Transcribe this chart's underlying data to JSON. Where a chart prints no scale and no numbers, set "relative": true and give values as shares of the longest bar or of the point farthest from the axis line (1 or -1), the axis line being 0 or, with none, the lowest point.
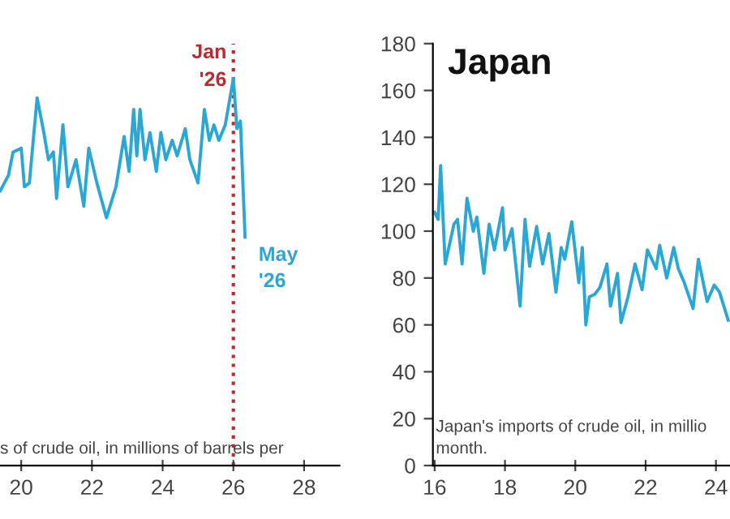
{
  "chart_data": [
    {
      "type": "line",
      "relative": true,
      "grid": false,
      "xlim": [
        19.4,
        29
      ],
      "xticks": [
        20,
        22,
        24,
        26,
        28
      ],
      "series": [
        {
          "color": "#2aa7d4",
          "x": [
            19.41,
            19.64,
            19.77,
            20.0,
            20.09,
            20.23,
            20.45,
            20.64,
            20.77,
            20.91,
            21.0,
            21.18,
            21.32,
            21.55,
            21.77,
            21.91,
            22.14,
            22.41,
            22.68,
            22.91,
            23.05,
            23.18,
            23.27,
            23.36,
            23.5,
            23.64,
            23.82,
            23.95,
            24.09,
            24.27,
            24.41,
            24.64,
            24.77,
            25.0,
            25.18,
            25.32,
            25.45,
            25.59,
            25.77,
            26.0,
            26.1,
            26.2,
            26.33
          ],
          "values": [
            0.71,
            0.75,
            0.81,
            0.82,
            0.72,
            0.73,
            0.95,
            0.86,
            0.79,
            0.81,
            0.69,
            0.88,
            0.72,
            0.79,
            0.67,
            0.82,
            0.73,
            0.64,
            0.72,
            0.85,
            0.76,
            0.92,
            0.8,
            0.92,
            0.79,
            0.86,
            0.76,
            0.86,
            0.79,
            0.84,
            0.8,
            0.87,
            0.79,
            0.73,
            0.92,
            0.84,
            0.88,
            0.84,
            0.88,
            1.0,
            0.87,
            0.89,
            0.59
          ]
        }
      ],
      "ref_lines": [
        {
          "axis": "x",
          "value": 26,
          "label": "Jan\n'26",
          "color": "#c0282d",
          "line_style": "dotted"
        }
      ],
      "annotations": [
        {
          "text": "May\n'26",
          "x": 26.33,
          "y": 0.59
        },
        "s of crude oil, in millions of barrels per"
      ]
    },
    {
      "type": "line",
      "title": "Japan",
      "grid": false,
      "xlim": [
        15.95,
        24.4
      ],
      "xticks": [
        16,
        18,
        20,
        22,
        24
      ],
      "ylim": [
        0,
        180
      ],
      "yticks": [
        0,
        20,
        40,
        60,
        80,
        100,
        120,
        140,
        160,
        180
      ],
      "series": [
        {
          "color": "#2aa7d4",
          "x": [
            16.0,
            16.1,
            16.17,
            16.3,
            16.55,
            16.65,
            16.78,
            16.92,
            17.1,
            17.2,
            17.4,
            17.55,
            17.7,
            17.93,
            18.0,
            18.2,
            18.43,
            18.57,
            18.7,
            18.9,
            19.07,
            19.25,
            19.45,
            19.6,
            19.7,
            19.9,
            20.1,
            20.2,
            20.3,
            20.4,
            20.55,
            20.7,
            20.9,
            21.0,
            21.2,
            21.3,
            21.5,
            21.7,
            21.9,
            22.05,
            22.3,
            22.4,
            22.6,
            22.8,
            22.93,
            23.1,
            23.35,
            23.5,
            23.75,
            23.95,
            24.1,
            24.35
          ],
          "values": [
            108,
            105,
            128,
            86,
            103,
            105,
            86,
            114,
            100,
            106,
            82,
            103,
            92,
            110,
            92,
            101,
            68,
            105,
            85,
            102,
            86,
            99,
            74,
            93,
            88,
            104,
            78,
            93,
            60,
            72,
            73,
            76,
            86,
            68,
            82,
            61,
            72,
            86,
            75,
            92,
            84,
            94,
            80,
            93,
            84,
            78,
            67,
            88,
            70,
            77,
            74,
            62
          ]
        }
      ],
      "annotations": [
        "Japan's imports of crude oil, in millio\nmonth."
      ]
    }
  ]
}
